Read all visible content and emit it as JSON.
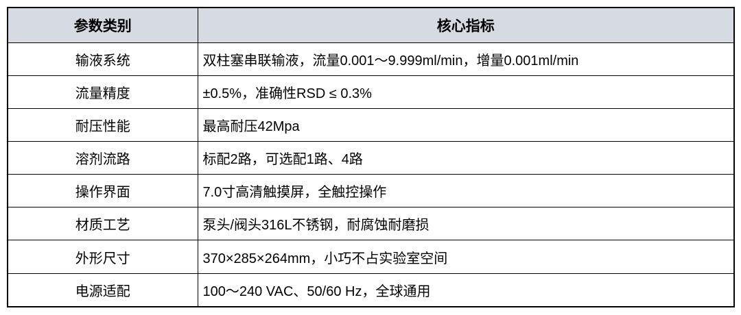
{
  "colors": {
    "header_bg": "#d6dbe3",
    "border": "#000000",
    "text": "#000000"
  },
  "table": {
    "headers": {
      "category": "参数类别",
      "value": "核心指标"
    },
    "rows": [
      {
        "category": "输液系统",
        "value": "双柱塞串联输液，流量0.001～9.999ml/min，增量0.001ml/min"
      },
      {
        "category": "流量精度",
        "value": "±0.5%，准确性RSD ≤ 0.3%"
      },
      {
        "category": "耐压性能",
        "value": "最高耐压42Mpa"
      },
      {
        "category": "溶剂流路",
        "value": "标配2路，可选配1路、4路"
      },
      {
        "category": "操作界面",
        "value": "7.0寸高清触摸屏，全触控操作"
      },
      {
        "category": "材质工艺",
        "value": "泵头/阀头316L不锈钢，耐腐蚀耐磨损"
      },
      {
        "category": "外形尺寸",
        "value": "370×285×264mm，小巧不占实验室空间"
      },
      {
        "category": "电源适配",
        "value": "100～240 VAC、50/60 Hz，全球通用"
      }
    ]
  }
}
